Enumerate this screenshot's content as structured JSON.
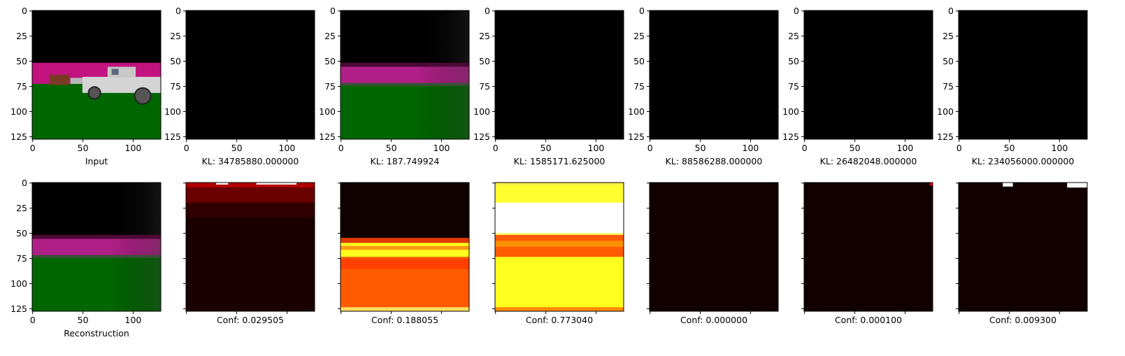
{
  "chart_data": [
    {
      "type": "heatmap",
      "image": "rgb-input-scene",
      "xlim": [
        0,
        127
      ],
      "ylim": [
        127,
        0
      ],
      "xticks": [
        0,
        50,
        100
      ],
      "yticks": [
        0,
        25,
        50,
        75,
        100,
        125
      ],
      "caption": "Input",
      "show_yticklabels": true,
      "scene_bands": [
        {
          "from": 0,
          "to": 52,
          "color": "#000000"
        },
        {
          "from": 52,
          "to": 74,
          "color": "#c2137f"
        },
        {
          "from": 74,
          "to": 127,
          "color": "#006600"
        }
      ]
    },
    {
      "type": "heatmap",
      "image": "black",
      "xlim": [
        0,
        127
      ],
      "ylim": [
        127,
        0
      ],
      "xticks": [
        0,
        50,
        100
      ],
      "yticks": [
        0,
        25,
        50,
        75,
        100,
        125
      ],
      "caption": "KL: 34785880.000000",
      "show_yticklabels": true
    },
    {
      "type": "heatmap",
      "image": "rgb-blurred-scene",
      "xlim": [
        0,
        127
      ],
      "ylim": [
        127,
        0
      ],
      "xticks": [
        0,
        50,
        100
      ],
      "yticks": [
        0,
        25,
        50,
        75,
        100,
        125
      ],
      "caption": "KL: 187.749924",
      "show_yticklabels": true
    },
    {
      "type": "heatmap",
      "image": "black",
      "xlim": [
        0,
        127
      ],
      "ylim": [
        127,
        0
      ],
      "xticks": [
        0,
        50,
        100
      ],
      "yticks": [
        0,
        25,
        50,
        75,
        100,
        125
      ],
      "caption": "KL: 1585171.625000",
      "show_yticklabels": true
    },
    {
      "type": "heatmap",
      "image": "black",
      "xlim": [
        0,
        127
      ],
      "ylim": [
        127,
        0
      ],
      "xticks": [
        0,
        50,
        100
      ],
      "yticks": [
        0,
        25,
        50,
        75,
        100,
        125
      ],
      "caption": "KL: 88586288.000000",
      "show_yticklabels": true
    },
    {
      "type": "heatmap",
      "image": "black",
      "xlim": [
        0,
        127
      ],
      "ylim": [
        127,
        0
      ],
      "xticks": [
        0,
        50,
        100
      ],
      "yticks": [
        0,
        25,
        50,
        75,
        100,
        125
      ],
      "caption": "KL: 26482048.000000",
      "show_yticklabels": true
    },
    {
      "type": "heatmap",
      "image": "black",
      "xlim": [
        0,
        127
      ],
      "ylim": [
        127,
        0
      ],
      "xticks": [
        0,
        50,
        100
      ],
      "yticks": [
        0,
        25,
        50,
        75,
        100,
        125
      ],
      "caption": "KL: 234056000.000000",
      "show_yticklabels": true
    },
    {
      "type": "heatmap",
      "image": "rgb-reconstruction",
      "xlim": [
        0,
        127
      ],
      "ylim": [
        127,
        0
      ],
      "xticks": [
        0,
        50,
        100
      ],
      "yticks": [
        0,
        25,
        50,
        75,
        100,
        125
      ],
      "caption": "Reconstruction",
      "show_yticklabels": true
    },
    {
      "type": "heatmap",
      "colormap": "hot",
      "image": "confidence-map-1",
      "xlim": [
        0,
        127
      ],
      "ylim": [
        127,
        0
      ],
      "xticks": [
        0,
        50,
        100
      ],
      "yticks": [
        0,
        25,
        50,
        75,
        100,
        125
      ],
      "caption": "Conf: 0.029505",
      "show_yticklabels": false
    },
    {
      "type": "heatmap",
      "colormap": "hot",
      "image": "confidence-map-2",
      "xlim": [
        0,
        127
      ],
      "ylim": [
        127,
        0
      ],
      "xticks": [
        0,
        50,
        100
      ],
      "yticks": [
        0,
        25,
        50,
        75,
        100,
        125
      ],
      "caption": "Conf: 0.188055",
      "show_yticklabels": false
    },
    {
      "type": "heatmap",
      "colormap": "hot",
      "image": "confidence-map-3",
      "xlim": [
        0,
        127
      ],
      "ylim": [
        127,
        0
      ],
      "xticks": [
        0,
        50,
        100
      ],
      "yticks": [
        0,
        25,
        50,
        75,
        100,
        125
      ],
      "caption": "Conf: 0.773040",
      "show_yticklabels": false
    },
    {
      "type": "heatmap",
      "colormap": "hot",
      "image": "confidence-map-4",
      "xlim": [
        0,
        127
      ],
      "ylim": [
        127,
        0
      ],
      "xticks": [
        0,
        50,
        100
      ],
      "yticks": [
        0,
        25,
        50,
        75,
        100,
        125
      ],
      "caption": "Conf: 0.000000",
      "show_yticklabels": false
    },
    {
      "type": "heatmap",
      "colormap": "hot",
      "image": "confidence-map-5",
      "xlim": [
        0,
        127
      ],
      "ylim": [
        127,
        0
      ],
      "xticks": [
        0,
        50,
        100
      ],
      "yticks": [
        0,
        25,
        50,
        75,
        100,
        125
      ],
      "caption": "Conf: 0.000100",
      "show_yticklabels": false
    },
    {
      "type": "heatmap",
      "colormap": "hot",
      "image": "confidence-map-6",
      "xlim": [
        0,
        127
      ],
      "ylim": [
        127,
        0
      ],
      "xticks": [
        0,
        50,
        100
      ],
      "yticks": [
        0,
        25,
        50,
        75,
        100,
        125
      ],
      "caption": "Conf: 0.009300",
      "show_yticklabels": false
    }
  ],
  "colors": {
    "black": "#000000",
    "magenta": "#c2137f",
    "green": "#006600",
    "dark_red": "#140000",
    "red": "#c80000",
    "orange": "#ff5a00",
    "yellow": "#ffff1e",
    "white": "#ffffff"
  }
}
